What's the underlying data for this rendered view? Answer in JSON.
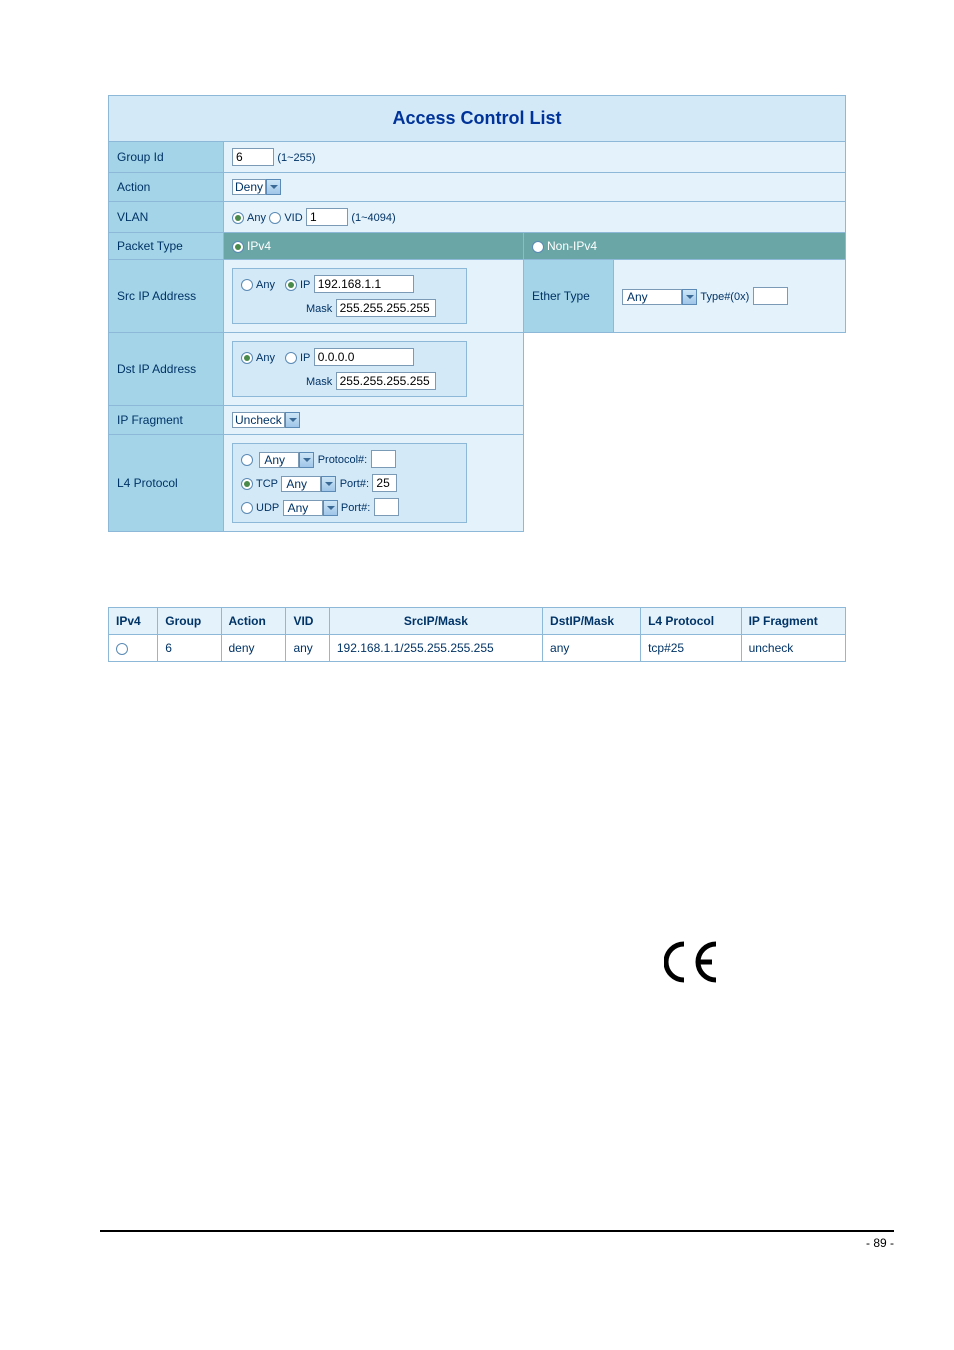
{
  "title": "Access Control List",
  "form": {
    "group_id": {
      "label": "Group Id",
      "value": "6",
      "hint": "(1~255)"
    },
    "action": {
      "label": "Action",
      "value": "Deny"
    },
    "vlan": {
      "label": "VLAN",
      "any_label": "Any",
      "vid_label": "VID",
      "vid_value": "1",
      "hint": "(1~4094)",
      "selected": "any"
    },
    "packet_type": {
      "label": "Packet Type",
      "ipv4_label": "IPv4",
      "nonipv4_label": "Non-IPv4",
      "selected": "ipv4"
    },
    "src_ip": {
      "label": "Src IP Address",
      "any_label": "Any",
      "ip_label": "IP",
      "ip_value": "192.168.1.1",
      "mask_label": "Mask",
      "mask_value": "255.255.255.255",
      "selected": "ip"
    },
    "ether_type": {
      "label": "Ether Type",
      "value": "Any",
      "type_label": "Type#(0x)",
      "type_value": ""
    },
    "dst_ip": {
      "label": "Dst IP Address",
      "any_label": "Any",
      "ip_label": "IP",
      "ip_value": "0.0.0.0",
      "mask_label": "Mask",
      "mask_value": "255.255.255.255",
      "selected": "any"
    },
    "ip_fragment": {
      "label": "IP Fragment",
      "value": "Uncheck"
    },
    "l4_protocol": {
      "label": "L4 Protocol",
      "any_label": "Any",
      "protocol_label": "Protocol#:",
      "protocol_value": "",
      "tcp_label": "TCP",
      "tcp_sel": "Any",
      "tcp_port_label": "Port#:",
      "tcp_port_value": "25",
      "udp_label": "UDP",
      "udp_sel": "Any",
      "udp_port_label": "Port#:",
      "udp_port_value": "",
      "selected": "tcp"
    }
  },
  "results": {
    "columns": [
      "IPv4",
      "Group",
      "Action",
      "VID",
      "SrcIP/Mask",
      "DstIP/Mask",
      "L4 Protocol",
      "IP Fragment"
    ],
    "row": {
      "group": "6",
      "action": "deny",
      "vid": "any",
      "srcip": "192.168.1.1/255.255.255.255",
      "dstip": "any",
      "l4": "tcp#25",
      "frag": "uncheck"
    }
  },
  "page_number": "- 89 -",
  "ce_mark": "CE",
  "colors": {
    "title_bg": "#d4e9f7",
    "title_fg": "#003399",
    "label_bg": "#a4d4e8",
    "value_bg": "#e4f2fb",
    "packet_bg": "#6aa6a6",
    "border": "#8db8d8"
  }
}
